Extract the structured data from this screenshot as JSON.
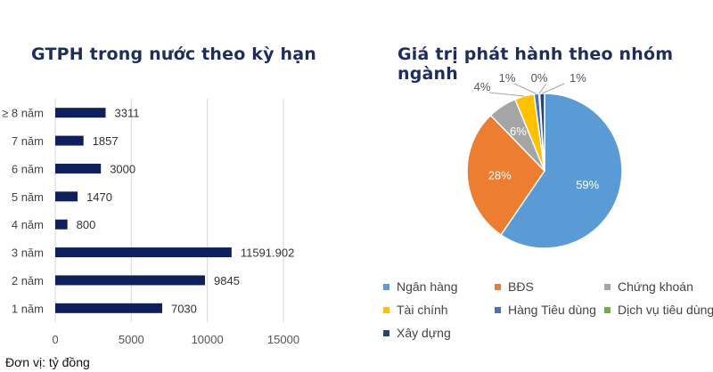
{
  "bar_chart": {
    "title": "GTPH trong nước theo kỳ hạn",
    "unit_note": "Đơn vị: tỷ đồng"
  },
  "pie_chart": {
    "title": "Giá trị phát hành theo nhóm ngành"
  },
  "chart_data": [
    {
      "type": "bar",
      "orientation": "horizontal",
      "title": "GTPH trong nước theo kỳ hạn",
      "categories": [
        "≥ 8 năm",
        "7 năm",
        "6 năm",
        "5 năm",
        "4 năm",
        "3 năm",
        "2 năm",
        "1 năm"
      ],
      "values": [
        3311,
        1857,
        3000,
        1470,
        800,
        11591.902,
        9845,
        7030
      ],
      "value_labels": [
        "3311",
        "1857",
        "3000",
        "1470",
        "800",
        "11591.902",
        "9845",
        "7030"
      ],
      "xlim": [
        0,
        15000
      ],
      "xticks": [
        0,
        5000,
        10000,
        15000
      ],
      "grid": true,
      "bar_color": "#0d1f5c"
    },
    {
      "type": "pie",
      "title": "Giá trị phát hành theo nhóm ngành",
      "labels": [
        "Ngân hàng",
        "BĐS",
        "Chứng khoán",
        "Tài chính",
        "Hàng Tiêu dùng",
        "Dịch vụ tiêu dùng",
        "Xây dựng"
      ],
      "values": [
        59,
        28,
        6,
        4,
        1,
        0,
        1
      ],
      "value_labels": [
        "59%",
        "28%",
        "6%",
        "4%",
        "1%",
        "0%",
        "1%"
      ],
      "colors": [
        "#5b9bd5",
        "#ed7d31",
        "#a5a5a5",
        "#ffc000",
        "#4472c4",
        "#70ad47",
        "#264478"
      ],
      "legend_position": "bottom"
    }
  ]
}
